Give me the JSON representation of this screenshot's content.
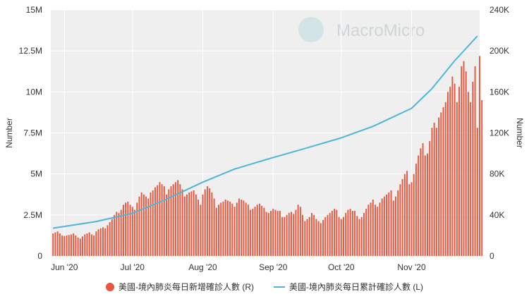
{
  "chart_data": {
    "type": "bar+line",
    "watermark": "MacroMicro",
    "left_axis": {
      "title": "Number",
      "ylim": [
        0,
        15000000
      ],
      "ticks": [
        {
          "value": 0,
          "label": "0"
        },
        {
          "value": 2500000,
          "label": "2.5M"
        },
        {
          "value": 5000000,
          "label": "5M"
        },
        {
          "value": 7500000,
          "label": "7.5M"
        },
        {
          "value": 10000000,
          "label": "10M"
        },
        {
          "value": 12500000,
          "label": "12.5M"
        },
        {
          "value": 15000000,
          "label": "15M"
        }
      ]
    },
    "right_axis": {
      "title": "Number",
      "ylim": [
        0,
        240000
      ],
      "ticks": [
        {
          "value": 0,
          "label": "0"
        },
        {
          "value": 40000,
          "label": "40K"
        },
        {
          "value": 80000,
          "label": "80K"
        },
        {
          "value": 120000,
          "label": "120K"
        },
        {
          "value": 160000,
          "label": "160K"
        },
        {
          "value": 200000,
          "label": "200K"
        },
        {
          "value": 240000,
          "label": "240K"
        }
      ]
    },
    "x_axis": {
      "range": [
        "2020-05-26",
        "2020-12-01"
      ],
      "ticks": [
        {
          "date": "2020-06-01",
          "label": "Jun '20"
        },
        {
          "date": "2020-07-01",
          "label": "Jul '20"
        },
        {
          "date": "2020-08-01",
          "label": "Aug '20"
        },
        {
          "date": "2020-09-01",
          "label": "Sep '20"
        },
        {
          "date": "2020-10-01",
          "label": "Oct '20"
        },
        {
          "date": "2020-11-01",
          "label": "Nov '20"
        }
      ]
    },
    "grid": true,
    "legend_position": "bottom-center",
    "series": [
      {
        "name": "美國-境內肺炎每日新增確診人數 (R)",
        "type": "bar",
        "axis": "right",
        "color": "#e8573e",
        "start_date": "2020-05-27",
        "end_date": "2020-11-30",
        "values": [
          22000,
          23000,
          24000,
          22000,
          20000,
          19500,
          20000,
          20500,
          21000,
          22000,
          20000,
          18000,
          17000,
          19000,
          21000,
          22000,
          23000,
          21000,
          20000,
          24000,
          26000,
          27000,
          28000,
          27000,
          30000,
          33000,
          36000,
          40000,
          43000,
          42000,
          45000,
          50000,
          52000,
          53000,
          50000,
          48000,
          45000,
          52000,
          58000,
          62000,
          60000,
          58000,
          56000,
          62000,
          64000,
          67000,
          69000,
          72000,
          70000,
          68000,
          60000,
          65000,
          68000,
          70000,
          72000,
          74000,
          70000,
          65000,
          58000,
          60000,
          62000,
          63000,
          64000,
          60000,
          55000,
          50000,
          60000,
          65000,
          68000,
          66000,
          62000,
          56000,
          47000,
          50000,
          52000,
          53000,
          55000,
          54000,
          53000,
          51000,
          48000,
          52000,
          56000,
          55000,
          54000,
          52000,
          50000,
          45000,
          46000,
          48000,
          50000,
          51000,
          49000,
          47000,
          43000,
          42000,
          44000,
          46000,
          45000,
          44000,
          44000,
          38000,
          38000,
          40000,
          42000,
          43000,
          41000,
          45000,
          50000,
          48000,
          40000,
          34000,
          36000,
          38000,
          42000,
          40000,
          36000,
          34000,
          32000,
          35000,
          38000,
          40000,
          42000,
          44000,
          46000,
          45000,
          38000,
          36000,
          38000,
          42000,
          45000,
          46000,
          44000,
          44000,
          39000,
          36000,
          38000,
          42000,
          46000,
          50000,
          52000,
          55000,
          50000,
          48000,
          52000,
          56000,
          58000,
          60000,
          62000,
          64000,
          54000,
          58000,
          64000,
          70000,
          75000,
          80000,
          83000,
          70000,
          72000,
          80000,
          90000,
          98000,
          105000,
          110000,
          98000,
          100000,
          112000,
          125000,
          130000,
          125000,
          135000,
          140000,
          145000,
          150000,
          160000,
          165000,
          175000,
          168000,
          150000,
          165000,
          185000,
          190000,
          180000,
          160000,
          150000,
          170000,
          185000,
          125000,
          195000,
          152000
        ]
      },
      {
        "name": "美國-境內肺炎每日累計確診人數 (L)",
        "type": "line",
        "axis": "left",
        "color": "#4db6d8",
        "points": [
          {
            "date": "2020-05-27",
            "value": 1700000
          },
          {
            "date": "2020-06-01",
            "value": 1800000
          },
          {
            "date": "2020-06-15",
            "value": 2100000
          },
          {
            "date": "2020-07-01",
            "value": 2600000
          },
          {
            "date": "2020-07-15",
            "value": 3400000
          },
          {
            "date": "2020-08-01",
            "value": 4500000
          },
          {
            "date": "2020-08-15",
            "value": 5300000
          },
          {
            "date": "2020-09-01",
            "value": 6000000
          },
          {
            "date": "2020-09-15",
            "value": 6550000
          },
          {
            "date": "2020-10-01",
            "value": 7200000
          },
          {
            "date": "2020-10-15",
            "value": 7900000
          },
          {
            "date": "2020-11-01",
            "value": 9000000
          },
          {
            "date": "2020-11-10",
            "value": 10200000
          },
          {
            "date": "2020-11-20",
            "value": 11900000
          },
          {
            "date": "2020-11-30",
            "value": 13400000
          }
        ]
      }
    ]
  },
  "legend": {
    "bar_label": "美國-境內肺炎每日新增確診人數 (R)",
    "line_label": "美國-境內肺炎每日累計確診人數 (L)"
  }
}
